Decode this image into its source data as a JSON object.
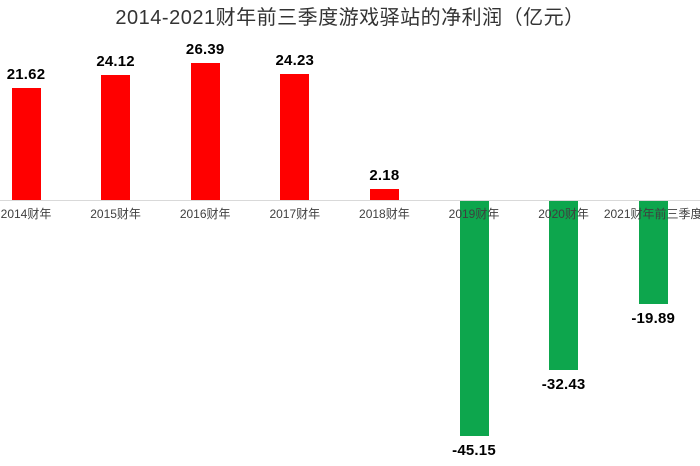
{
  "title": "2014-2021财年前三季度游戏驿站的净利润（亿元）",
  "chart_data": {
    "type": "bar",
    "title": "2014-2021财年前三季度游戏驿站的净利润（亿元）",
    "categories": [
      "2014财年",
      "2015财年",
      "2016财年",
      "2017财年",
      "2018财年",
      "2019财年",
      "2020财年",
      "2021财年前三季度"
    ],
    "values": [
      21.62,
      24.12,
      26.39,
      24.23,
      2.18,
      -45.15,
      -32.43,
      -19.89
    ],
    "value_labels": [
      "21.62",
      "24.12",
      "26.39",
      "24.23",
      "2.18",
      "-45.15",
      "-32.43",
      "-19.89"
    ],
    "xlabel": "",
    "ylabel": "",
    "ylim": [
      -50,
      30
    ],
    "grid": false,
    "legend": false,
    "baseline_value": 0,
    "colors": {
      "positive_bar": "#ff0000",
      "negative_bar": "#0da64d",
      "value_label": "#000000",
      "category_label": "#3f3f3f",
      "axis_line": "#d9d9d9",
      "title": "#333333",
      "background": "#ffffff"
    }
  }
}
